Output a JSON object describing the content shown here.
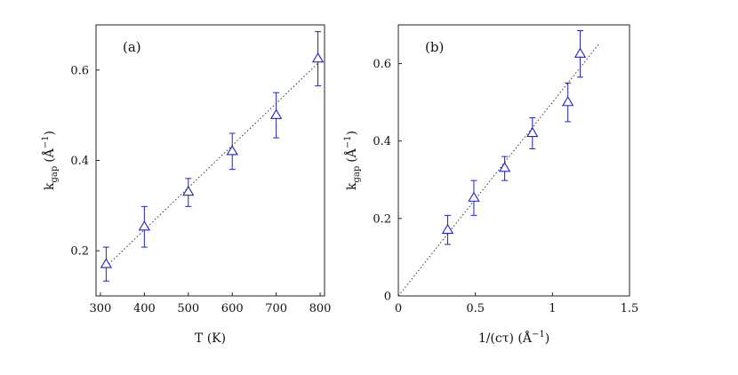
{
  "chart_data": [
    {
      "type": "scatter",
      "panel_label": "(a)",
      "xlabel": "T (K)",
      "ylabel_main": "k",
      "ylabel_sub": "gap",
      "ylabel_unit": "(Å",
      "ylabel_exp": "−1",
      "ylabel_close": ")",
      "xlim": [
        290,
        810
      ],
      "ylim": [
        0.1,
        0.7
      ],
      "xticks": [
        300,
        400,
        500,
        600,
        700,
        800
      ],
      "xtick_labels": [
        "300",
        "400",
        "500",
        "600",
        "700",
        "800"
      ],
      "yticks": [
        0.2,
        0.4,
        0.6
      ],
      "ytick_labels": [
        "0.2",
        "0.4",
        "0.6"
      ],
      "grid": false,
      "marker": "triangle-open",
      "series": [
        {
          "name": "k_gap vs T",
          "color": "#2020c8",
          "x": [
            313,
            400,
            500,
            600,
            700,
            795
          ],
          "y": [
            0.17,
            0.253,
            0.33,
            0.42,
            0.5,
            0.625
          ],
          "yerr_low": [
            0.133,
            0.208,
            0.298,
            0.38,
            0.45,
            0.565
          ],
          "yerr_high": [
            0.208,
            0.298,
            0.36,
            0.46,
            0.55,
            0.685
          ]
        }
      ],
      "fit_line": {
        "style": "dotted",
        "x": [
          313,
          795
        ],
        "y": [
          0.165,
          0.615
        ]
      }
    },
    {
      "type": "scatter",
      "panel_label": "(b)",
      "xlabel_pre": "1/(cτ) (Å",
      "xlabel_exp": "−1",
      "xlabel_close": ")",
      "ylabel_main": "k",
      "ylabel_sub": "gap",
      "ylabel_unit": "(Å",
      "ylabel_exp": "−1",
      "ylabel_close": ")",
      "xlim": [
        0,
        1.5
      ],
      "ylim": [
        0,
        0.7
      ],
      "xticks": [
        0,
        0.5,
        1,
        1.5
      ],
      "xtick_labels": [
        "0",
        "0.5",
        "1",
        "1.5"
      ],
      "yticks": [
        0,
        0.2,
        0.4,
        0.6
      ],
      "ytick_labels": [
        "0",
        "0.2",
        "0.4",
        "0.6"
      ],
      "grid": false,
      "marker": "triangle-open",
      "series": [
        {
          "name": "k_gap vs 1/(cτ)",
          "color": "#2020c8",
          "x": [
            0.32,
            0.49,
            0.69,
            0.87,
            1.1,
            1.18
          ],
          "y": [
            0.17,
            0.253,
            0.33,
            0.42,
            0.5,
            0.625
          ],
          "yerr_low": [
            0.133,
            0.208,
            0.298,
            0.38,
            0.45,
            0.565
          ],
          "yerr_high": [
            0.208,
            0.298,
            0.36,
            0.46,
            0.55,
            0.685
          ]
        }
      ],
      "fit_line": {
        "style": "dotted",
        "x": [
          0,
          1.3
        ],
        "y": [
          0,
          0.65
        ]
      }
    }
  ]
}
